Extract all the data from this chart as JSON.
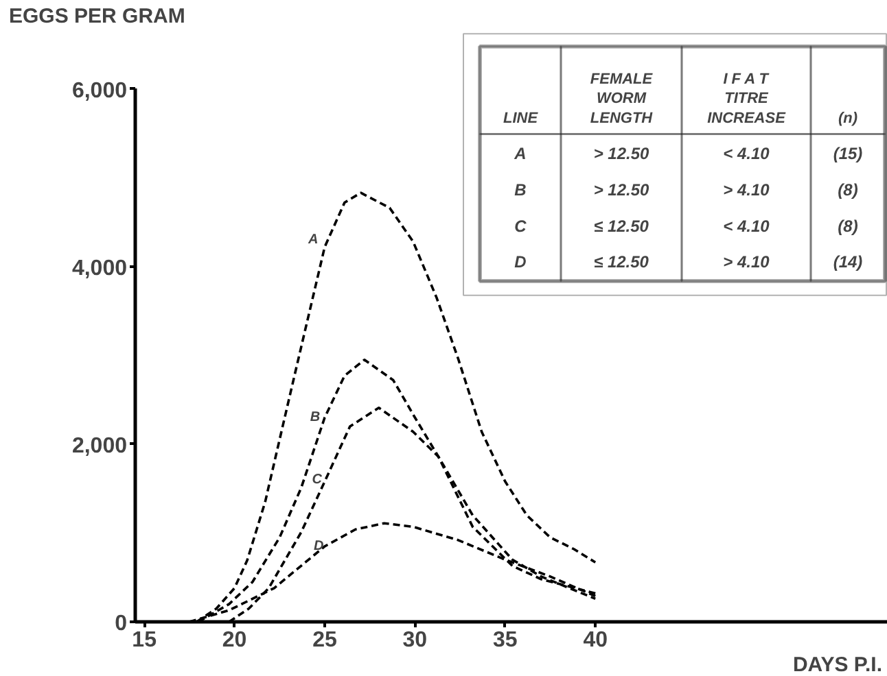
{
  "chart_data": {
    "type": "line",
    "ylabel": "EGGS PER GRAM",
    "xlabel": "DAYS P.I.",
    "xlim": [
      14.5,
      56.2
    ],
    "xticks": [
      15,
      20,
      25,
      30,
      35,
      40
    ],
    "ylim": [
      0,
      6000
    ],
    "yticks": [
      0,
      {
        "value": 2000,
        "label": "2,000"
      },
      {
        "value": 4000,
        "label": "4,000"
      },
      {
        "value": 6000,
        "label": "6,000"
      }
    ],
    "grid": false,
    "marker": "none",
    "line_style": "dashed",
    "series": [
      {
        "color": "#000000",
        "x": [
          17.9,
          19,
          20,
          20.7,
          21.7,
          22.6,
          23.3,
          23.9,
          25,
          26.1,
          27,
          28.6,
          29.9,
          31.2,
          32.4,
          33.7,
          35,
          36.2,
          37.5,
          38.8,
          40
        ],
        "values": [
          0,
          150,
          380,
          690,
          1350,
          2140,
          2750,
          3270,
          4220,
          4720,
          4830,
          4660,
          4280,
          3650,
          2960,
          2140,
          1580,
          1200,
          950,
          820,
          670
        ]
      },
      {
        "color": "#000000",
        "x": [
          18,
          19.7,
          21,
          22.5,
          23.7,
          25,
          26.1,
          27.2,
          28.8,
          30,
          31.3,
          33.2,
          35.4,
          37,
          40
        ],
        "values": [
          0,
          200,
          450,
          950,
          1510,
          2300,
          2770,
          2950,
          2720,
          2300,
          1860,
          1070,
          630,
          480,
          320
        ]
      },
      {
        "color": "#000000",
        "x": [
          19.7,
          20.8,
          21.9,
          23.7,
          25,
          26.4,
          28,
          29.9,
          31.3,
          33.2,
          35.4,
          37,
          40
        ],
        "values": [
          0,
          150,
          380,
          1010,
          1580,
          2200,
          2410,
          2140,
          1860,
          1200,
          700,
          510,
          260
        ]
      },
      {
        "color": "#000000",
        "x": [
          17.5,
          19.7,
          22.2,
          25,
          26.7,
          28.3,
          29.9,
          32.4,
          35,
          37.5,
          40
        ],
        "values": [
          0,
          130,
          380,
          850,
          1040,
          1110,
          1070,
          920,
          700,
          510,
          290
        ]
      }
    ],
    "annotations": [
      {
        "text": "A",
        "x": 24.9,
        "y": 4300
      },
      {
        "text": "B",
        "x": 25,
        "y": 2300
      },
      {
        "text": "C",
        "x": 25.1,
        "y": 1600
      },
      {
        "text": "D",
        "x": 25.2,
        "y": 850
      },
      "LINE",
      "FEMALE\nWORM\nLENGTH",
      "I F A T\nTITRE\nINCREASE",
      "(n)",
      "A",
      "> 12.50",
      "< 4.10",
      "(15)",
      "B",
      "> 12.50",
      "> 4.10",
      "(8)",
      "C",
      "≤ 12.50",
      "< 4.10",
      "(8)",
      "D",
      "≤ 12.50",
      "> 4.10",
      "(14)"
    ]
  }
}
